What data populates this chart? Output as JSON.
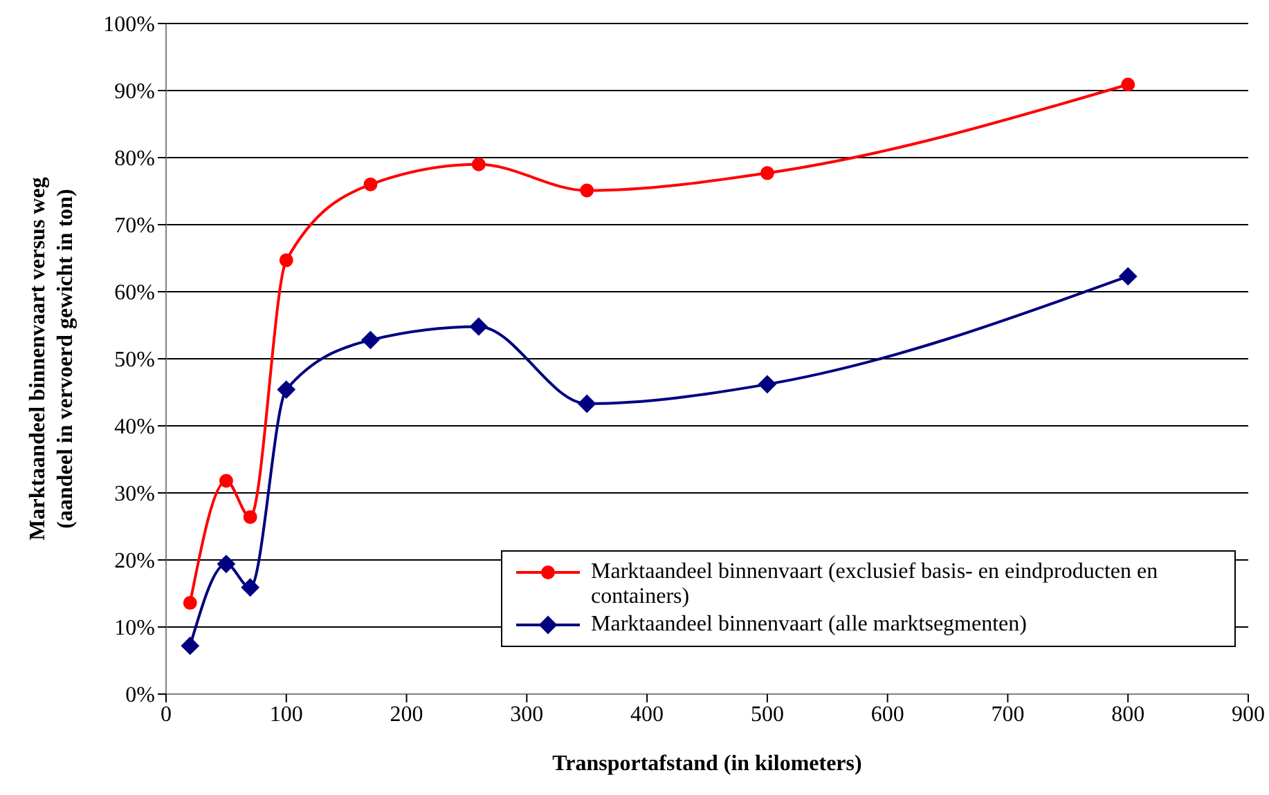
{
  "chart_data": {
    "type": "line",
    "xlabel": "Transportafstand (in kilometers)",
    "ylabel": "Marktaandeel binnenvaart versus weg\n(aandeel in vervoerd gewicht in ton)",
    "xlim": [
      0,
      900
    ],
    "xticks": [
      0,
      100,
      200,
      300,
      400,
      500,
      600,
      700,
      800,
      900
    ],
    "ylim": [
      0,
      100
    ],
    "yticks": [
      {
        "value": 0,
        "label": "0%"
      },
      {
        "value": 10,
        "label": "10%"
      },
      {
        "value": 20,
        "label": "20%"
      },
      {
        "value": 30,
        "label": "30%"
      },
      {
        "value": 40,
        "label": "40%"
      },
      {
        "value": 50,
        "label": "50%"
      },
      {
        "value": 60,
        "label": "60%"
      },
      {
        "value": 70,
        "label": "70%"
      },
      {
        "value": 80,
        "label": "80%"
      },
      {
        "value": 90,
        "label": "90%"
      },
      {
        "value": 100,
        "label": "100%"
      }
    ],
    "grid": "y",
    "legend": "bottom right",
    "series": [
      {
        "name": "Marktaandeel binnenvaart (exclusief basis- en eindproducten en containers)",
        "color": "#ff0000",
        "marker": "circle",
        "x": [
          20,
          50,
          70,
          100,
          170,
          260,
          350,
          500,
          800
        ],
        "values": [
          13.6,
          31.8,
          26.4,
          64.7,
          76,
          79,
          75.1,
          77.7,
          90.9
        ]
      },
      {
        "name": "Marktaandeel binnenvaart (alle marktsegmenten)",
        "color": "#000080",
        "marker": "diamond",
        "x": [
          20,
          50,
          70,
          100,
          170,
          260,
          350,
          500,
          800
        ],
        "values": [
          7.2,
          19.4,
          15.9,
          45.4,
          52.8,
          54.8,
          43.3,
          46.2,
          62.3
        ]
      }
    ]
  }
}
